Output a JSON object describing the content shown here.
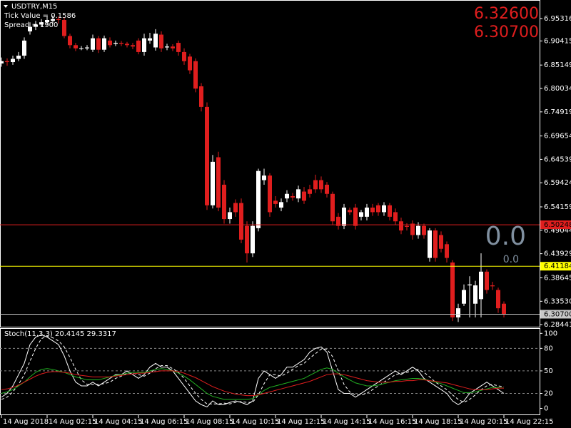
{
  "info": {
    "symbol": "USDTRY,M15",
    "tick_value": "Tick Value = 0.1586",
    "spread": "Spread = 1900"
  },
  "price_labels": [
    "6.32600",
    "6.30700"
  ],
  "annotations": [
    "0.0",
    "0.0"
  ],
  "chart_data": [
    {
      "type": "candlestick",
      "up_color": "#ffffff",
      "down_color": "#e01e1e",
      "categories": [
        "14 Aug 2018",
        null,
        null,
        null,
        null,
        null,
        null,
        null,
        "14 Aug 02:15",
        null,
        null,
        null,
        null,
        null,
        null,
        null,
        "14 Aug 04:15",
        null,
        null,
        null,
        null,
        null,
        null,
        null,
        "14 Aug 06:15",
        null,
        null,
        null,
        null,
        null,
        null,
        null,
        "14 Aug 08:15",
        null,
        null,
        null,
        null,
        null,
        null,
        null,
        "14 Aug 10:15",
        null,
        null,
        null,
        null,
        null,
        null,
        null,
        "14 Aug 12:15",
        null,
        null,
        null,
        null,
        null,
        null,
        null,
        "14 Aug 14:15",
        null,
        null,
        null,
        null,
        null,
        null,
        null,
        "14 Aug 16:15",
        null,
        null,
        null,
        null,
        null,
        null,
        null,
        "14 Aug 18:15",
        null,
        null,
        null,
        null,
        null,
        null,
        null,
        "14 Aug 20:15",
        null,
        null,
        null,
        null,
        null,
        null,
        null,
        "14 Aug 22:15"
      ],
      "open": [
        6.855,
        6.86,
        6.858,
        6.865,
        6.872,
        6.925,
        6.935,
        6.94,
        6.945,
        6.948,
        6.952,
        6.95,
        6.915,
        6.895,
        6.888,
        6.888,
        6.885,
        6.91,
        6.885,
        6.905,
        6.898,
        6.9,
        6.898,
        6.895,
        6.905,
        6.88,
        6.905,
        6.89,
        6.918,
        6.89,
        6.892,
        6.9,
        6.88,
        6.87,
        6.86,
        6.805,
        6.76,
        6.545,
        6.65,
        6.59,
        6.515,
        6.55,
        6.55,
        6.5,
        6.44,
        6.495,
        6.6,
        6.61,
        6.555,
        6.54,
        6.56,
        6.565,
        6.56,
        6.575,
        6.58,
        6.6,
        6.6,
        6.59,
        6.57,
        6.52,
        6.5,
        6.535,
        6.54,
        6.52,
        6.52,
        6.54,
        6.545,
        6.53,
        6.545,
        6.53,
        6.51,
        6.5,
        6.505,
        6.48,
        6.5,
        6.43,
        6.49,
        6.48,
        6.46,
        6.42,
        6.3,
        6.33,
        6.37,
        6.33,
        6.34,
        6.4,
        6.37,
        6.36,
        6.33
      ],
      "high": [
        6.868,
        6.866,
        6.872,
        6.88,
        6.912,
        6.945,
        6.948,
        6.952,
        6.958,
        6.96,
        6.958,
        6.955,
        6.92,
        6.9,
        6.893,
        6.895,
        6.918,
        6.915,
        6.916,
        6.912,
        6.905,
        6.904,
        6.902,
        6.9,
        6.91,
        6.92,
        6.922,
        6.93,
        6.925,
        6.898,
        6.897,
        6.905,
        6.888,
        6.876,
        6.866,
        6.812,
        6.77,
        6.655,
        6.662,
        6.6,
        6.54,
        6.558,
        6.56,
        6.51,
        6.51,
        6.625,
        6.625,
        6.615,
        6.565,
        6.56,
        6.578,
        6.572,
        6.588,
        6.585,
        6.59,
        6.612,
        6.608,
        6.596,
        6.575,
        6.528,
        6.548,
        6.54,
        6.548,
        6.535,
        6.548,
        6.548,
        6.55,
        6.552,
        6.55,
        6.538,
        6.518,
        6.506,
        6.512,
        6.508,
        6.505,
        6.495,
        6.495,
        6.488,
        6.466,
        6.425,
        6.33,
        6.372,
        6.39,
        6.38,
        6.44,
        6.405,
        6.378,
        6.365,
        6.335
      ],
      "low": [
        6.848,
        6.85,
        6.852,
        6.86,
        6.865,
        6.918,
        6.928,
        6.935,
        6.94,
        6.942,
        6.942,
        6.91,
        6.888,
        6.882,
        6.884,
        6.884,
        6.88,
        6.878,
        6.88,
        6.89,
        6.893,
        6.893,
        6.89,
        6.886,
        6.875,
        6.872,
        6.898,
        6.883,
        6.88,
        6.884,
        6.882,
        6.872,
        6.852,
        6.832,
        6.792,
        6.75,
        6.535,
        6.538,
        6.532,
        6.505,
        6.505,
        6.52,
        6.462,
        6.42,
        6.432,
        6.488,
        6.59,
        6.52,
        6.54,
        6.532,
        6.552,
        6.555,
        6.552,
        6.548,
        6.562,
        6.572,
        6.572,
        6.562,
        6.502,
        6.492,
        6.493,
        6.524,
        6.492,
        6.512,
        6.512,
        6.522,
        6.522,
        6.522,
        6.512,
        6.502,
        6.482,
        6.49,
        6.47,
        6.472,
        6.472,
        6.422,
        6.422,
        6.442,
        6.42,
        6.292,
        6.29,
        6.325,
        6.3,
        6.3,
        6.3,
        6.352,
        6.36,
        6.31,
        6.3
      ],
      "close": [
        6.86,
        6.858,
        6.865,
        6.872,
        6.905,
        6.935,
        6.94,
        6.945,
        6.95,
        6.952,
        6.95,
        6.915,
        6.895,
        6.888,
        6.888,
        6.89,
        6.91,
        6.885,
        6.91,
        6.895,
        6.9,
        6.898,
        6.895,
        6.892,
        6.88,
        6.91,
        6.91,
        6.92,
        6.888,
        6.892,
        6.888,
        6.88,
        6.86,
        6.84,
        6.8,
        6.76,
        6.545,
        6.64,
        6.54,
        6.515,
        6.53,
        6.53,
        6.47,
        6.44,
        6.5,
        6.62,
        6.61,
        6.53,
        6.548,
        6.552,
        6.57,
        6.562,
        6.58,
        6.555,
        6.57,
        6.58,
        6.58,
        6.57,
        6.51,
        6.5,
        6.54,
        6.53,
        6.5,
        6.53,
        6.54,
        6.53,
        6.53,
        6.545,
        6.52,
        6.51,
        6.49,
        6.498,
        6.48,
        6.5,
        6.48,
        6.49,
        6.43,
        6.45,
        6.43,
        6.3,
        6.32,
        6.36,
        6.372,
        6.37,
        6.4,
        6.36,
        6.368,
        6.32,
        6.307
      ],
      "ylim": [
        6.2797,
        6.9921
      ],
      "yticks": [
        6.95316,
        6.90415,
        6.85149,
        6.80034,
        6.74919,
        6.69654,
        6.64539,
        6.59424,
        6.54159,
        6.49044,
        6.43929,
        6.38645,
        {
          "value": 6.3353,
          "label": "6.33530"
        },
        6.28441
      ],
      "hlines": [
        {
          "value": 6.50248,
          "label": "6.50248",
          "color": "#e01e1e"
        },
        {
          "value": 6.41184,
          "label": "6.41184",
          "color": "#ffff00"
        },
        {
          "value": 6.307,
          "label": "6.30700",
          "color": "#c8c8c8"
        }
      ]
    },
    {
      "type": "line",
      "title": "Stoch(11,3,3) 20.4145 29.3317",
      "ylim": [
        -9,
        106
      ],
      "yticks": [
        100,
        80,
        50,
        20,
        0
      ],
      "levels": [
        80,
        50,
        20
      ],
      "series": [
        {
          "color": "#ffffff",
          "style": "solid",
          "values": [
            15,
            20,
            30,
            45,
            60,
            85,
            95,
            98,
            95,
            90,
            85,
            70,
            50,
            35,
            30,
            30,
            35,
            30,
            35,
            40,
            45,
            45,
            50,
            45,
            40,
            45,
            55,
            60,
            55,
            55,
            50,
            40,
            30,
            20,
            10,
            5,
            2,
            10,
            5,
            5,
            8,
            10,
            8,
            5,
            10,
            40,
            50,
            45,
            40,
            45,
            55,
            55,
            60,
            65,
            75,
            80,
            82,
            75,
            50,
            25,
            20,
            20,
            15,
            20,
            25,
            30,
            35,
            40,
            45,
            50,
            45,
            50,
            55,
            50,
            40,
            35,
            30,
            25,
            20,
            10,
            5,
            10,
            20,
            25,
            30,
            35,
            30,
            25,
            20
          ]
        },
        {
          "color": "#ffffff",
          "style": "dashed",
          "values": [
            12,
            15,
            22,
            32,
            45,
            63,
            80,
            93,
            96,
            94,
            90,
            82,
            68,
            52,
            38,
            32,
            32,
            32,
            33,
            35,
            40,
            43,
            47,
            47,
            45,
            43,
            47,
            53,
            57,
            57,
            53,
            48,
            40,
            30,
            20,
            12,
            6,
            6,
            6,
            7,
            6,
            8,
            9,
            8,
            8,
            18,
            33,
            45,
            45,
            43,
            47,
            52,
            57,
            60,
            67,
            73,
            79,
            79,
            69,
            50,
            32,
            22,
            18,
            18,
            20,
            25,
            30,
            35,
            40,
            45,
            47,
            48,
            50,
            52,
            48,
            42,
            35,
            30,
            25,
            18,
            12,
            8,
            12,
            18,
            25,
            30,
            32,
            30,
            29
          ]
        },
        {
          "color": "#22b022",
          "style": "solid",
          "values": [
            20,
            22,
            25,
            30,
            35,
            42,
            48,
            52,
            53,
            52,
            50,
            48,
            45,
            42,
            40,
            38,
            38,
            38,
            40,
            42,
            44,
            45,
            47,
            48,
            48,
            48,
            50,
            52,
            53,
            52,
            50,
            47,
            43,
            38,
            32,
            26,
            20,
            16,
            14,
            12,
            12,
            12,
            12,
            12,
            13,
            18,
            24,
            28,
            30,
            32,
            34,
            36,
            38,
            40,
            44,
            48,
            52,
            54,
            52,
            47,
            42,
            38,
            34,
            32,
            30,
            30,
            31,
            33,
            35,
            37,
            38,
            39,
            40,
            40,
            39,
            37,
            35,
            33,
            30,
            27,
            24,
            21,
            21,
            22,
            24,
            26,
            28,
            28,
            27
          ]
        },
        {
          "color": "#e01e1e",
          "style": "solid",
          "values": [
            25,
            26,
            28,
            31,
            35,
            39,
            43,
            46,
            48,
            49,
            49,
            48,
            47,
            45,
            44,
            43,
            42,
            42,
            42,
            42,
            43,
            44,
            45,
            46,
            47,
            47,
            48,
            49,
            50,
            50,
            50,
            49,
            47,
            44,
            41,
            37,
            33,
            29,
            26,
            23,
            21,
            19,
            18,
            17,
            17,
            18,
            20,
            22,
            24,
            26,
            28,
            30,
            32,
            34,
            36,
            39,
            42,
            45,
            46,
            46,
            45,
            43,
            41,
            39,
            37,
            36,
            35,
            35,
            35,
            36,
            36,
            37,
            37,
            38,
            38,
            37,
            36,
            35,
            34,
            32,
            30,
            28,
            26,
            25,
            25,
            25,
            26,
            27,
            27
          ]
        }
      ]
    }
  ]
}
